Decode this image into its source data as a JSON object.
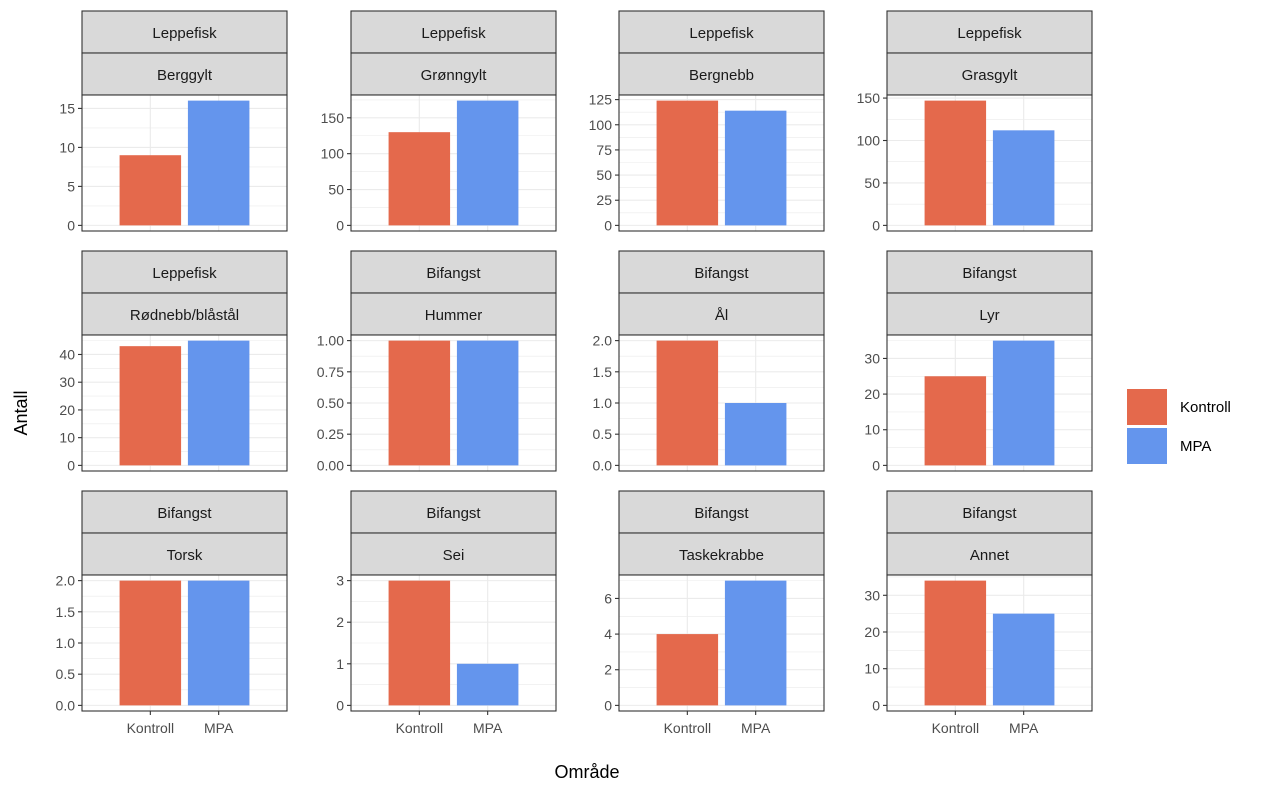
{
  "chart_data": {
    "type": "bar",
    "xlabel": "Område",
    "ylabel": "Antall",
    "categories": [
      "Kontroll",
      "MPA"
    ],
    "colors": {
      "Kontroll": "#E4694C",
      "MPA": "#6495ED"
    },
    "legend": {
      "position": "right",
      "entries": [
        "Kontroll",
        "MPA"
      ]
    },
    "grid": true,
    "facets": [
      {
        "group": "Leppefisk",
        "species": "Berggylt",
        "values": [
          9,
          16
        ],
        "ylim": [
          0,
          16
        ],
        "yticks": [
          "0",
          "5",
          "10",
          "15"
        ]
      },
      {
        "group": "Leppefisk",
        "species": "Grønngylt",
        "values": [
          130,
          174
        ],
        "ylim": [
          0,
          174
        ],
        "yticks": [
          "0",
          "50",
          "100",
          "150"
        ]
      },
      {
        "group": "Leppefisk",
        "species": "Bergnebb",
        "values": [
          124,
          114
        ],
        "ylim": [
          0,
          124
        ],
        "yticks": [
          "0",
          "25",
          "50",
          "75",
          "100",
          "125"
        ]
      },
      {
        "group": "Leppefisk",
        "species": "Grasgylt",
        "values": [
          147,
          112
        ],
        "ylim": [
          0,
          147
        ],
        "yticks": [
          "0",
          "50",
          "100",
          "150"
        ]
      },
      {
        "group": "Leppefisk",
        "species": "Rødnebb/blåstål",
        "values": [
          43,
          45
        ],
        "ylim": [
          0,
          45
        ],
        "yticks": [
          "0",
          "10",
          "20",
          "30",
          "40"
        ]
      },
      {
        "group": "Bifangst",
        "species": "Hummer",
        "values": [
          1,
          1
        ],
        "ylim": [
          0,
          1
        ],
        "yticks": [
          "0.00",
          "0.25",
          "0.50",
          "0.75",
          "1.00"
        ]
      },
      {
        "group": "Bifangst",
        "species": "Ål",
        "values": [
          2,
          1
        ],
        "ylim": [
          0,
          2
        ],
        "yticks": [
          "0.0",
          "0.5",
          "1.0",
          "1.5",
          "2.0"
        ]
      },
      {
        "group": "Bifangst",
        "species": "Lyr",
        "values": [
          25,
          35
        ],
        "ylim": [
          0,
          35
        ],
        "yticks": [
          "0",
          "10",
          "20",
          "30"
        ]
      },
      {
        "group": "Bifangst",
        "species": "Torsk",
        "values": [
          2,
          2
        ],
        "ylim": [
          0,
          2
        ],
        "yticks": [
          "0.0",
          "0.5",
          "1.0",
          "1.5",
          "2.0"
        ]
      },
      {
        "group": "Bifangst",
        "species": "Sei",
        "values": [
          3,
          1
        ],
        "ylim": [
          0,
          3
        ],
        "yticks": [
          "0",
          "1",
          "2",
          "3"
        ]
      },
      {
        "group": "Bifangst",
        "species": "Taskekrabbe",
        "values": [
          4,
          7
        ],
        "ylim": [
          0,
          7
        ],
        "yticks": [
          "0",
          "2",
          "4",
          "6"
        ]
      },
      {
        "group": "Bifangst",
        "species": "Annet",
        "values": [
          34,
          25
        ],
        "ylim": [
          0,
          34
        ],
        "yticks": [
          "0",
          "10",
          "20",
          "30"
        ]
      }
    ]
  }
}
